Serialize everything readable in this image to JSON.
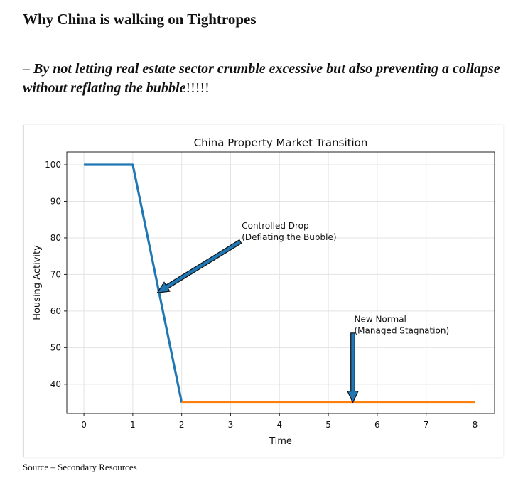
{
  "page": {
    "heading": "Why China is walking on Tightropes",
    "subheading_emph": "– By not letting real estate sector crumble excessive but also preventing a collapse without reflating the bubble",
    "subheading_tail": "!!!!!",
    "source": "Source – Secondary Resources"
  },
  "chart_data": {
    "type": "line",
    "title": "China Property Market Transition",
    "xlabel": "Time",
    "ylabel": "Housing Activity",
    "xlim": [
      -0.35,
      8.4
    ],
    "ylim": [
      32,
      103.5
    ],
    "xticks": [
      0,
      1,
      2,
      3,
      4,
      5,
      6,
      7,
      8
    ],
    "yticks": [
      40,
      50,
      60,
      70,
      80,
      90,
      100
    ],
    "grid": true,
    "series": [
      {
        "color": "#1f77b4",
        "x": [
          0,
          1,
          2
        ],
        "y": [
          100,
          100,
          35
        ]
      },
      {
        "color": "#ff7f0e",
        "x": [
          2,
          8
        ],
        "y": [
          35,
          35
        ]
      }
    ],
    "annotations": [
      {
        "lines": [
          "Controlled Drop",
          "(Deflating the Bubble)"
        ],
        "text_at": [
          3.2,
          82.5
        ],
        "arrow_from": [
          3.2,
          79
        ],
        "arrow_to": [
          1.5,
          65
        ]
      },
      {
        "lines": [
          "New Normal",
          "(Managed Stagnation)"
        ],
        "text_at": [
          5.5,
          57
        ],
        "arrow_from": [
          5.5,
          54
        ],
        "arrow_to": [
          5.5,
          35
        ]
      }
    ]
  }
}
